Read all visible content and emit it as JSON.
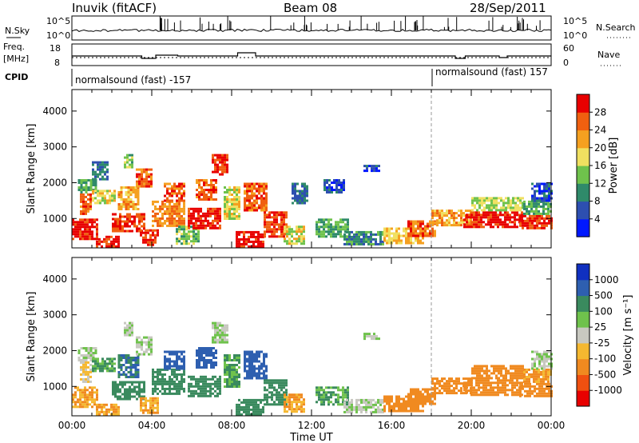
{
  "header": {
    "station": "Inuvik (fitACF)",
    "beam": "Beam 08",
    "date": "28/Sep/2011"
  },
  "noise_panel": {
    "left_label": "N.Sky",
    "right_label": "N.Search",
    "left_ticks": [
      "10^5",
      "10^0"
    ],
    "right_ticks": [
      "10^5",
      "10^0"
    ]
  },
  "freq_panel": {
    "left_label_1": "Freq.",
    "left_label_2": "[MHz]",
    "right_label": "Nave",
    "left_ticks": [
      "18",
      "8"
    ],
    "right_ticks": [
      "60",
      "0"
    ]
  },
  "cpid_panel": {
    "label": "CPID",
    "segments": [
      {
        "start_hour": 0,
        "end_hour": 18,
        "text": "normalsound (fast) -157"
      },
      {
        "start_hour": 18,
        "end_hour": 24,
        "text": "normalsound (fast) 157"
      }
    ]
  },
  "chart_data": [
    {
      "type": "heatmap",
      "name": "power",
      "ylabel": "Slant Range [km]",
      "xlabel": "",
      "x_range_hours": [
        0,
        24
      ],
      "ylim_km": [
        180,
        4600
      ],
      "y_ticks": [
        1000,
        2000,
        3000,
        4000
      ],
      "colorbar": {
        "label": "Power [dB]",
        "tick_labels": [
          "4",
          "8",
          "12",
          "16",
          "20",
          "24",
          "28"
        ],
        "range": [
          0,
          32
        ],
        "colors": [
          "#0018ff",
          "#2d4fb0",
          "#2f8a6a",
          "#6fc24c",
          "#f0e060",
          "#f5a020",
          "#f06010",
          "#e80000"
        ]
      },
      "regions": [
        {
          "t0": 0.0,
          "t1": 1.3,
          "r0": 400,
          "r1": 1000,
          "v": 30
        },
        {
          "t0": 0.4,
          "t1": 1.0,
          "r0": 1100,
          "r1": 1700,
          "v": 26
        },
        {
          "t0": 0.3,
          "t1": 1.2,
          "r0": 1700,
          "r1": 2100,
          "v": 12
        },
        {
          "t0": 1.2,
          "t1": 2.3,
          "r0": 200,
          "r1": 520,
          "v": 30
        },
        {
          "t0": 1.0,
          "t1": 2.2,
          "r0": 1400,
          "r1": 1800,
          "v": 18
        },
        {
          "t0": 1.0,
          "t1": 1.8,
          "r0": 2100,
          "r1": 2600,
          "v": 8
        },
        {
          "t0": 2.0,
          "t1": 3.6,
          "r0": 650,
          "r1": 1150,
          "v": 28
        },
        {
          "t0": 2.3,
          "t1": 3.3,
          "r0": 1250,
          "r1": 1900,
          "v": 22
        },
        {
          "t0": 2.6,
          "t1": 3.0,
          "r0": 2400,
          "r1": 2800,
          "v": 14
        },
        {
          "t0": 3.2,
          "t1": 4.0,
          "r0": 1900,
          "r1": 2400,
          "v": 26
        },
        {
          "t0": 3.4,
          "t1": 4.3,
          "r0": 250,
          "r1": 700,
          "v": 28
        },
        {
          "t0": 4.0,
          "t1": 5.6,
          "r0": 800,
          "r1": 1500,
          "v": 24
        },
        {
          "t0": 4.6,
          "t1": 5.6,
          "r0": 1500,
          "r1": 2000,
          "v": 26
        },
        {
          "t0": 5.2,
          "t1": 6.4,
          "r0": 300,
          "r1": 800,
          "v": 14
        },
        {
          "t0": 5.8,
          "t1": 7.4,
          "r0": 700,
          "r1": 1300,
          "v": 30
        },
        {
          "t0": 6.2,
          "t1": 7.2,
          "r0": 1500,
          "r1": 2100,
          "v": 26
        },
        {
          "t0": 7.0,
          "t1": 7.8,
          "r0": 2200,
          "r1": 2800,
          "v": 28
        },
        {
          "t0": 7.6,
          "t1": 8.4,
          "r0": 1000,
          "r1": 1900,
          "v": 18
        },
        {
          "t0": 8.2,
          "t1": 9.6,
          "r0": 200,
          "r1": 650,
          "v": 30
        },
        {
          "t0": 8.6,
          "t1": 9.7,
          "r0": 1200,
          "r1": 2000,
          "v": 26
        },
        {
          "t0": 9.6,
          "t1": 10.8,
          "r0": 500,
          "r1": 1200,
          "v": 28
        },
        {
          "t0": 10.6,
          "t1": 11.6,
          "r0": 300,
          "r1": 800,
          "v": 18
        },
        {
          "t0": 11.0,
          "t1": 11.8,
          "r0": 1400,
          "r1": 2000,
          "v": 8
        },
        {
          "t0": 12.2,
          "t1": 13.8,
          "r0": 500,
          "r1": 1000,
          "v": 12
        },
        {
          "t0": 12.6,
          "t1": 13.6,
          "r0": 1700,
          "r1": 2100,
          "v": 6
        },
        {
          "t0": 13.6,
          "t1": 15.6,
          "r0": 250,
          "r1": 650,
          "v": 10
        },
        {
          "t0": 14.6,
          "t1": 15.4,
          "r0": 2300,
          "r1": 2500,
          "v": 6
        },
        {
          "t0": 15.6,
          "t1": 17.6,
          "r0": 300,
          "r1": 750,
          "v": 20
        },
        {
          "t0": 16.8,
          "t1": 18.2,
          "r0": 500,
          "r1": 950,
          "v": 26
        },
        {
          "t0": 18.0,
          "t1": 20.0,
          "r0": 800,
          "r1": 1250,
          "v": 22
        },
        {
          "t0": 19.6,
          "t1": 22.5,
          "r0": 750,
          "r1": 1200,
          "v": 30
        },
        {
          "t0": 20.0,
          "t1": 22.6,
          "r0": 1250,
          "r1": 1600,
          "v": 16
        },
        {
          "t0": 22.4,
          "t1": 24.0,
          "r0": 700,
          "r1": 1100,
          "v": 28
        },
        {
          "t0": 22.6,
          "t1": 24.0,
          "r0": 1100,
          "r1": 1500,
          "v": 12
        },
        {
          "t0": 23.0,
          "t1": 24.0,
          "r0": 1500,
          "r1": 2000,
          "v": 6
        }
      ]
    },
    {
      "type": "heatmap",
      "name": "velocity",
      "ylabel": "Slant Range [km]",
      "xlabel": "Time UT",
      "x_range_hours": [
        0,
        24
      ],
      "x_tick_labels": [
        "00:00",
        "04:00",
        "08:00",
        "12:00",
        "16:00",
        "20:00",
        "00:00"
      ],
      "ylim_km": [
        180,
        4600
      ],
      "y_ticks": [
        1000,
        2000,
        3000,
        4000
      ],
      "colorbar": {
        "label": "Velocity [m s⁻¹]",
        "tick_labels": [
          "-1000",
          "-500",
          "-100",
          "-25",
          "25",
          "100",
          "500",
          "1000"
        ],
        "colors": [
          "#e80000",
          "#f05010",
          "#f08a20",
          "#f5b830",
          "#c8c8c0",
          "#6fc24c",
          "#3a8a5e",
          "#2e5fb0",
          "#1030c0"
        ]
      },
      "regions": [
        {
          "t0": 0.0,
          "t1": 1.3,
          "r0": 400,
          "r1": 1000,
          "v": -100
        },
        {
          "t0": 0.4,
          "t1": 1.0,
          "r0": 1100,
          "r1": 1700,
          "v": -25
        },
        {
          "t0": 0.3,
          "t1": 1.2,
          "r0": 1700,
          "r1": 2100,
          "v": 25
        },
        {
          "t0": 1.2,
          "t1": 2.3,
          "r0": 200,
          "r1": 520,
          "v": -100
        },
        {
          "t0": 1.0,
          "t1": 2.2,
          "r0": 1400,
          "r1": 1800,
          "v": 100
        },
        {
          "t0": 2.0,
          "t1": 3.6,
          "r0": 650,
          "r1": 1150,
          "v": 300
        },
        {
          "t0": 2.3,
          "t1": 3.3,
          "r0": 1250,
          "r1": 1900,
          "v": 500
        },
        {
          "t0": 2.6,
          "t1": 3.0,
          "r0": 2400,
          "r1": 2800,
          "v": 25
        },
        {
          "t0": 3.2,
          "t1": 4.0,
          "r0": 1900,
          "r1": 2400,
          "v": 25
        },
        {
          "t0": 3.4,
          "t1": 4.3,
          "r0": 250,
          "r1": 700,
          "v": -100
        },
        {
          "t0": 4.0,
          "t1": 5.6,
          "r0": 800,
          "r1": 1500,
          "v": 300
        },
        {
          "t0": 4.6,
          "t1": 5.6,
          "r0": 1500,
          "r1": 2000,
          "v": 800
        },
        {
          "t0": 5.8,
          "t1": 7.4,
          "r0": 700,
          "r1": 1300,
          "v": 300
        },
        {
          "t0": 6.2,
          "t1": 7.2,
          "r0": 1500,
          "r1": 2100,
          "v": 800
        },
        {
          "t0": 7.0,
          "t1": 7.8,
          "r0": 2200,
          "r1": 2800,
          "v": 25
        },
        {
          "t0": 7.6,
          "t1": 8.4,
          "r0": 1000,
          "r1": 1900,
          "v": 100
        },
        {
          "t0": 8.2,
          "t1": 9.6,
          "r0": 200,
          "r1": 650,
          "v": 300
        },
        {
          "t0": 8.6,
          "t1": 9.7,
          "r0": 1200,
          "r1": 2000,
          "v": 800
        },
        {
          "t0": 9.6,
          "t1": 10.8,
          "r0": 500,
          "r1": 1200,
          "v": 300
        },
        {
          "t0": 10.6,
          "t1": 11.6,
          "r0": 300,
          "r1": 800,
          "v": -100
        },
        {
          "t0": 12.2,
          "t1": 13.8,
          "r0": 500,
          "r1": 1000,
          "v": 100
        },
        {
          "t0": 13.6,
          "t1": 15.6,
          "r0": 250,
          "r1": 650,
          "v": 25
        },
        {
          "t0": 14.6,
          "t1": 15.4,
          "r0": 2300,
          "r1": 2500,
          "v": 25
        },
        {
          "t0": 15.6,
          "t1": 17.6,
          "r0": 300,
          "r1": 750,
          "v": -300
        },
        {
          "t0": 16.8,
          "t1": 18.2,
          "r0": 500,
          "r1": 950,
          "v": -300
        },
        {
          "t0": 18.0,
          "t1": 20.0,
          "r0": 800,
          "r1": 1250,
          "v": -300
        },
        {
          "t0": 19.6,
          "t1": 22.5,
          "r0": 750,
          "r1": 1200,
          "v": -300
        },
        {
          "t0": 20.0,
          "t1": 22.6,
          "r0": 1250,
          "r1": 1600,
          "v": -300
        },
        {
          "t0": 22.4,
          "t1": 24.0,
          "r0": 700,
          "r1": 1100,
          "v": -300
        },
        {
          "t0": 22.6,
          "t1": 24.0,
          "r0": 1100,
          "r1": 1500,
          "v": -100
        },
        {
          "t0": 23.0,
          "t1": 24.0,
          "r0": 1500,
          "r1": 2000,
          "v": 25
        }
      ]
    }
  ]
}
